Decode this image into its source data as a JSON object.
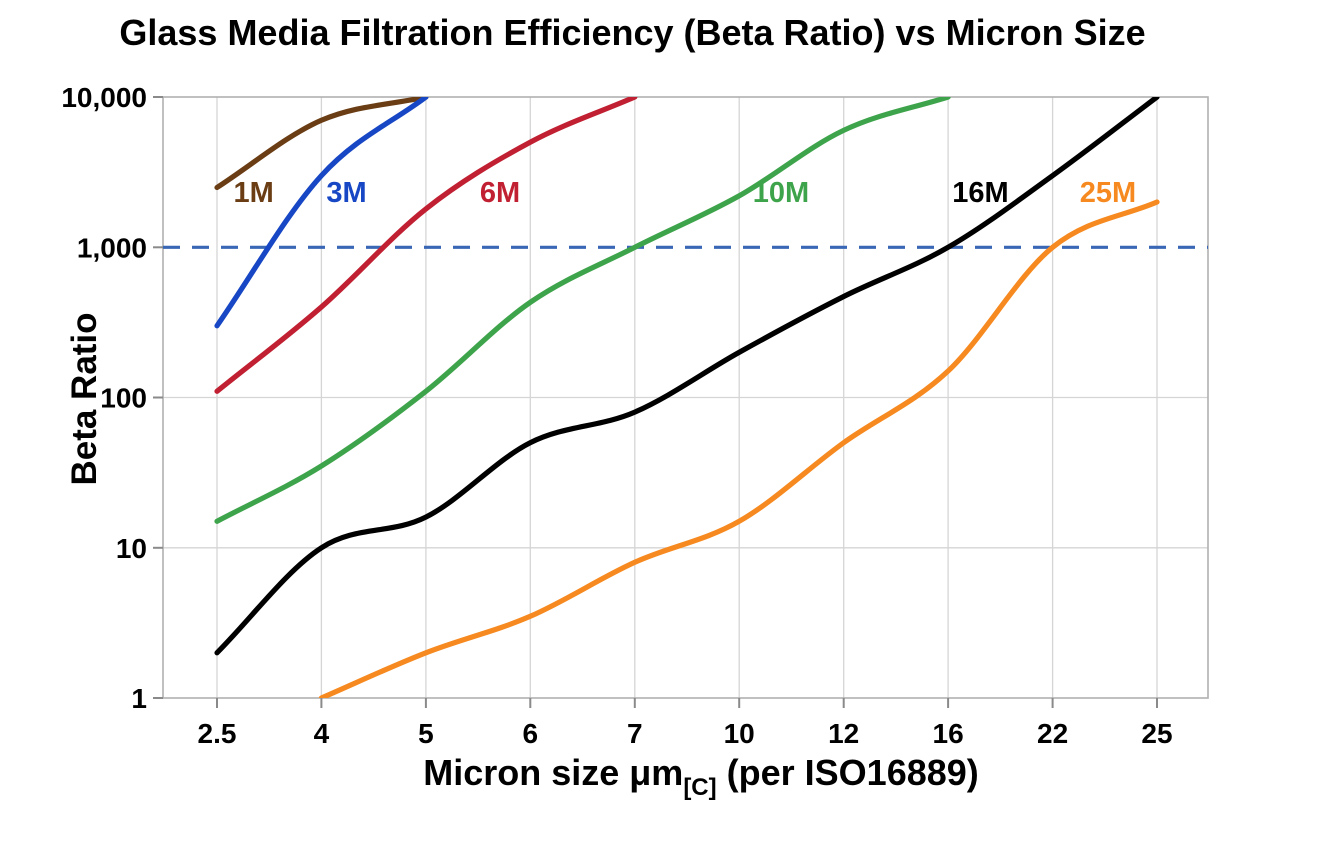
{
  "chart_data": {
    "type": "line",
    "title": "Glass Media Filtration Efficiency (Beta Ratio) vs Micron Size",
    "xlabel": "Micron size μm[C] (per ISO16889)",
    "xlabel_parts": {
      "main": "Micron size μm",
      "sub": "[C]",
      "suffix": " (per ISO16889)"
    },
    "ylabel": "Beta Ratio",
    "x_categories": [
      2.5,
      4,
      5,
      6,
      7,
      10,
      12,
      16,
      22,
      25
    ],
    "x_tick_labels": [
      "2.5",
      "4",
      "5",
      "6",
      "7",
      "10",
      "12",
      "16",
      "22",
      "25"
    ],
    "y_scale": "log",
    "ylim": [
      1,
      10000
    ],
    "y_ticks": [
      {
        "value": 1,
        "label": "1"
      },
      {
        "value": 10,
        "label": "10"
      },
      {
        "value": 100,
        "label": "100"
      },
      {
        "value": 1000,
        "label": "1,000"
      },
      {
        "value": 10000,
        "label": "10,000"
      }
    ],
    "grid": true,
    "legend_position": "inline-curve-labels",
    "reference_line": {
      "value": 1000,
      "style": "dashed",
      "color": "#3a67b5"
    },
    "series": [
      {
        "name": "1M",
        "color": "#6a3d14",
        "x": [
          2.5,
          4,
          5
        ],
        "values": [
          2500,
          7000,
          10000
        ],
        "label_pos": {
          "x_index": 0.35,
          "value": 2300
        }
      },
      {
        "name": "3M",
        "color": "#1747c4",
        "x": [
          2.5,
          4,
          5
        ],
        "values": [
          300,
          3000,
          10000
        ],
        "label_pos": {
          "x_index": 1.24,
          "value": 2300
        }
      },
      {
        "name": "6M",
        "color": "#c12032",
        "x": [
          2.5,
          4,
          5,
          6,
          7
        ],
        "values": [
          110,
          400,
          1800,
          5000,
          10000
        ],
        "label_pos": {
          "x_index": 2.71,
          "value": 2300
        }
      },
      {
        "name": "10M",
        "color": "#3ea44b",
        "x": [
          2.5,
          4,
          5,
          6,
          7,
          10,
          12,
          16
        ],
        "values": [
          15,
          35,
          110,
          430,
          1000,
          2200,
          6000,
          10000
        ],
        "label_pos": {
          "x_index": 5.4,
          "value": 2300
        }
      },
      {
        "name": "16M",
        "color": "#000000",
        "x": [
          2.5,
          4,
          5,
          6,
          7,
          10,
          12,
          16,
          22,
          25
        ],
        "values": [
          2,
          10,
          16,
          50,
          80,
          200,
          470,
          1000,
          3000,
          10000
        ],
        "label_pos": {
          "x_index": 7.31,
          "value": 2300
        }
      },
      {
        "name": "25M",
        "color": "#f6891f",
        "x": [
          4,
          5,
          6,
          7,
          10,
          12,
          16,
          22,
          25
        ],
        "values": [
          1,
          2,
          3.5,
          8,
          15,
          50,
          150,
          1000,
          2000
        ],
        "label_pos": {
          "x_index": 8.53,
          "value": 2300
        }
      }
    ]
  }
}
